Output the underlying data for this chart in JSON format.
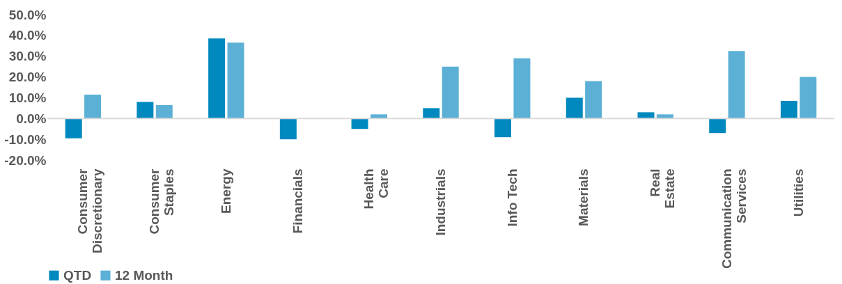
{
  "chart_data": {
    "type": "bar",
    "categories": [
      "Consumer\nDiscretionary",
      "Consumer\nStaples",
      "Energy",
      "Financials",
      "Health\nCare",
      "Industrials",
      "Info Tech",
      "Materials",
      "Real\nEstate",
      "Communication\nServices",
      "Utilities"
    ],
    "series": [
      {
        "name": "QTD",
        "color": "#0089bf",
        "values": [
          -9.5,
          8.0,
          38.5,
          -10.0,
          -5.0,
          5.0,
          -9.0,
          10.0,
          3.0,
          -7.0,
          8.5
        ]
      },
      {
        "name": "12 Month",
        "color": "#5cb0d6",
        "values": [
          11.5,
          6.5,
          36.5,
          0,
          2.0,
          25.0,
          29.0,
          18.0,
          2.0,
          32.5,
          20.0
        ]
      }
    ],
    "ylim": [
      -20,
      50
    ],
    "yticks": [
      {
        "value": -20,
        "label": "-20.0%"
      },
      {
        "value": -10,
        "label": "-10.0%"
      },
      {
        "value": 0,
        "label": "0.0%"
      },
      {
        "value": 10,
        "label": "10.0%"
      },
      {
        "value": 20,
        "label": "20.0%"
      },
      {
        "value": 30,
        "label": "30.0%"
      },
      {
        "value": 40,
        "label": "40.0%"
      },
      {
        "value": 50,
        "label": "50.0%"
      }
    ],
    "grid": false,
    "ref_lines": [
      {
        "axis": "y",
        "value": 0,
        "color": "#d9d9d9"
      }
    ],
    "legend": "bottom"
  }
}
